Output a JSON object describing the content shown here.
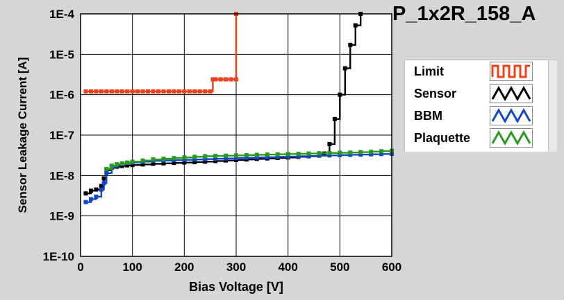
{
  "title": "P_1x2R_158_A",
  "legend": {
    "items": [
      {
        "label": "Limit",
        "color": "#f0401a",
        "pattern": "square-wave"
      },
      {
        "label": "Sensor",
        "color": "#000000",
        "pattern": "triangle-wave"
      },
      {
        "label": "BBM",
        "color": "#1447c8",
        "pattern": "triangle-wave"
      },
      {
        "label": "Plaquette",
        "color": "#2a9a1e",
        "pattern": "triangle-wave"
      }
    ]
  },
  "chart_data": {
    "type": "line",
    "title": "P_1x2R_158_A",
    "xlabel": "Bias Voltage [V]",
    "ylabel": "Sensor Leakage Current [A]",
    "xlim": [
      0,
      600
    ],
    "ylim": [
      1e-10,
      0.0001
    ],
    "yscale": "log",
    "x_ticks": [
      "0",
      "100",
      "200",
      "300",
      "400",
      "500",
      "600"
    ],
    "y_ticks": [
      "1E-10",
      "1E-9",
      "1E-8",
      "1E-7",
      "1E-6",
      "1E-5",
      "1E-4"
    ],
    "grid": true,
    "legend_position": "right",
    "series": [
      {
        "name": "Limit",
        "color": "#f0401a",
        "x": [
          10,
          20,
          30,
          40,
          50,
          60,
          70,
          80,
          90,
          100,
          110,
          120,
          130,
          140,
          150,
          160,
          170,
          180,
          190,
          200,
          210,
          220,
          230,
          240,
          250,
          255,
          260,
          270,
          280,
          290,
          300,
          300
        ],
        "y": [
          1.2e-06,
          1.2e-06,
          1.2e-06,
          1.2e-06,
          1.2e-06,
          1.2e-06,
          1.2e-06,
          1.2e-06,
          1.2e-06,
          1.2e-06,
          1.2e-06,
          1.2e-06,
          1.2e-06,
          1.2e-06,
          1.2e-06,
          1.2e-06,
          1.2e-06,
          1.2e-06,
          1.2e-06,
          1.2e-06,
          1.2e-06,
          1.2e-06,
          1.2e-06,
          1.2e-06,
          1.2e-06,
          2.4e-06,
          2.4e-06,
          2.4e-06,
          2.4e-06,
          2.4e-06,
          2.4e-06,
          0.0001
        ]
      },
      {
        "name": "Sensor",
        "color": "#000000",
        "x": [
          10,
          20,
          30,
          40,
          45,
          50,
          60,
          70,
          80,
          90,
          100,
          120,
          140,
          160,
          180,
          200,
          220,
          240,
          260,
          280,
          300,
          320,
          340,
          360,
          380,
          400,
          420,
          440,
          460,
          470,
          480,
          490,
          500,
          510,
          520,
          530,
          540
        ],
        "y": [
          3.6e-09,
          4.2e-09,
          4.5e-09,
          5.5e-09,
          8.5e-09,
          1.35e-08,
          1.55e-08,
          1.65e-08,
          1.72e-08,
          1.78e-08,
          1.82e-08,
          1.88e-08,
          1.95e-08,
          2e-08,
          2.05e-08,
          2.1e-08,
          2.15e-08,
          2.2e-08,
          2.28e-08,
          2.35e-08,
          2.42e-08,
          2.5e-08,
          2.58e-08,
          2.65e-08,
          2.72e-08,
          2.8e-08,
          2.9e-08,
          3e-08,
          3.2e-08,
          3.5e-08,
          6e-08,
          2.5e-07,
          1e-06,
          4.5e-06,
          1.7e-05,
          5.2e-05,
          0.0001
        ]
      },
      {
        "name": "BBM",
        "color": "#1447c8",
        "x": [
          10,
          20,
          30,
          40,
          45,
          50,
          60,
          70,
          80,
          90,
          100,
          120,
          140,
          160,
          180,
          200,
          220,
          240,
          260,
          280,
          300,
          320,
          340,
          360,
          380,
          400,
          420,
          440,
          460,
          480,
          500,
          520,
          540,
          560,
          580,
          600
        ],
        "y": [
          2.2e-09,
          2.6e-09,
          3e-09,
          4.5e-09,
          6.5e-09,
          1.15e-08,
          1.6e-08,
          1.8e-08,
          1.95e-08,
          2.05e-08,
          2.1e-08,
          2.2e-08,
          2.3e-08,
          2.35e-08,
          2.4e-08,
          2.45e-08,
          2.5e-08,
          2.55e-08,
          2.6e-08,
          2.65e-08,
          2.7e-08,
          2.75e-08,
          2.8e-08,
          2.85e-08,
          2.9e-08,
          2.95e-08,
          3e-08,
          3.05e-08,
          3.1e-08,
          3.15e-08,
          3.2e-08,
          3.25e-08,
          3.3e-08,
          3.35e-08,
          3.4e-08,
          3.45e-08
        ]
      },
      {
        "name": "Plaquette",
        "color": "#2a9a1e",
        "x": [
          50,
          60,
          70,
          80,
          90,
          100,
          120,
          140,
          160,
          180,
          200,
          220,
          240,
          260,
          280,
          300,
          320,
          340,
          360,
          380,
          400,
          420,
          440,
          460,
          480,
          500,
          520,
          540,
          560,
          580,
          600
        ],
        "y": [
          1.45e-08,
          1.75e-08,
          1.9e-08,
          2e-08,
          2.1e-08,
          2.2e-08,
          2.35e-08,
          2.5e-08,
          2.6e-08,
          2.7e-08,
          2.8e-08,
          2.9e-08,
          3e-08,
          3.05e-08,
          3.1e-08,
          3.15e-08,
          3.2e-08,
          3.25e-08,
          3.3e-08,
          3.35e-08,
          3.4e-08,
          3.45e-08,
          3.5e-08,
          3.55e-08,
          3.6e-08,
          3.65e-08,
          3.7e-08,
          3.8e-08,
          3.9e-08,
          4e-08,
          4.1e-08
        ]
      }
    ]
  }
}
